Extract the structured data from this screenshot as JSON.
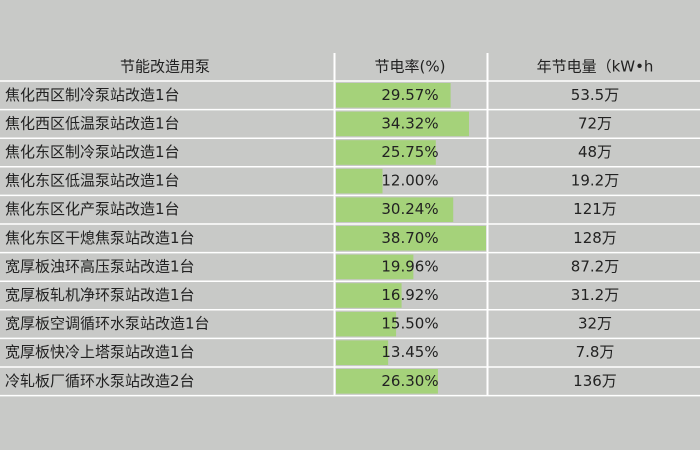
{
  "table": {
    "header": [
      "节能改造用泵",
      "节电率(%)",
      "年节电量（kW•h"
    ],
    "rows": [
      {
        "name": "焦化西区制冷泵站改造1台",
        "rate": {
          "value": 29.57,
          "label": "29.57%"
        },
        "saving": "53.5万"
      },
      {
        "name": "焦化西区低温泵站改造1台",
        "rate": {
          "value": 34.32,
          "label": "34.32%"
        },
        "saving": "72万"
      },
      {
        "name": "焦化东区制冷泵站改造1台",
        "rate": {
          "value": 25.75,
          "label": "25.75%"
        },
        "saving": "48万"
      },
      {
        "name": "焦化东区低温泵站改造1台",
        "rate": {
          "value": 12.0,
          "label": "12.00%"
        },
        "saving": "19.2万"
      },
      {
        "name": "焦化东区化产泵站改造1台",
        "rate": {
          "value": 30.24,
          "label": "30.24%"
        },
        "saving": "121万"
      },
      {
        "name": "焦化东区干熄焦泵站改造1台",
        "rate": {
          "value": 38.7,
          "label": "38.70%"
        },
        "saving": "128万"
      },
      {
        "name": "宽厚板浊环高压泵站改造1台",
        "rate": {
          "value": 19.96,
          "label": "19.96%"
        },
        "saving": "87.2万"
      },
      {
        "name": "宽厚板轧机净环泵站改造1台",
        "rate": {
          "value": 16.92,
          "label": "16.92%"
        },
        "saving": "31.2万"
      },
      {
        "name": "宽厚板空调循环水泵站改造1台",
        "rate": {
          "value": 15.5,
          "label": "15.50%"
        },
        "saving": "32万"
      },
      {
        "name": "宽厚板快冷上塔泵站改造1台",
        "rate": {
          "value": 13.45,
          "label": "13.45%"
        },
        "saving": "7.8万"
      },
      {
        "name": "冷轧板厂循环水泵站改造2台",
        "rate": {
          "value": 26.3,
          "label": "26.30%"
        },
        "saving": "136万"
      }
    ],
    "bar_color": "#a5d27a"
  }
}
